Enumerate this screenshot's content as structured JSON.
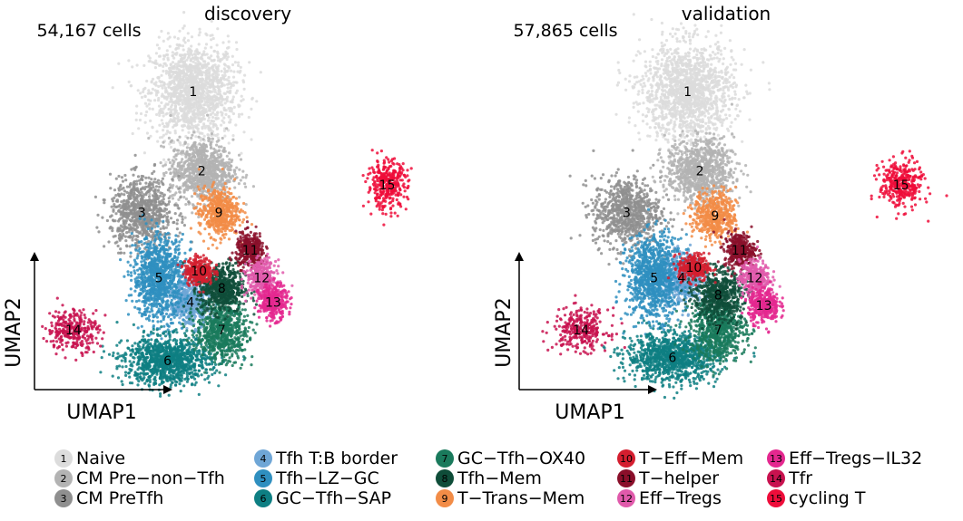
{
  "chart_data": [
    {
      "type": "scatter",
      "title": "discovery",
      "annotation": "54,167 cells",
      "xlabel": "UMAP1",
      "ylabel": "UMAP2",
      "grid": false,
      "clusters": [
        {
          "id": 1,
          "x": 0.0,
          "y": 4.4,
          "count": 1500
        },
        {
          "id": 2,
          "x": 0.3,
          "y": 2.1,
          "count": 900
        },
        {
          "id": 3,
          "x": -1.8,
          "y": 0.9,
          "count": 800
        },
        {
          "id": 4,
          "x": -0.1,
          "y": -1.7,
          "count": 500
        },
        {
          "id": 5,
          "x": -1.2,
          "y": -1.0,
          "count": 1000
        },
        {
          "id": 6,
          "x": -0.9,
          "y": -3.4,
          "count": 1100
        },
        {
          "id": 7,
          "x": 1.0,
          "y": -2.5,
          "count": 700
        },
        {
          "id": 8,
          "x": 1.0,
          "y": -1.3,
          "count": 600
        },
        {
          "id": 9,
          "x": 0.9,
          "y": 0.9,
          "count": 500
        },
        {
          "id": 10,
          "x": 0.2,
          "y": -0.8,
          "count": 300
        },
        {
          "id": 11,
          "x": 2.0,
          "y": -0.2,
          "count": 350
        },
        {
          "id": 12,
          "x": 2.4,
          "y": -1.0,
          "count": 350
        },
        {
          "id": 13,
          "x": 2.8,
          "y": -1.7,
          "count": 350
        },
        {
          "id": 14,
          "x": -4.2,
          "y": -2.5,
          "count": 300
        },
        {
          "id": 15,
          "x": 6.8,
          "y": 1.7,
          "count": 350
        }
      ]
    },
    {
      "type": "scatter",
      "title": "validation",
      "annotation": "57,865 cells",
      "xlabel": "UMAP1",
      "ylabel": "UMAP2",
      "grid": false,
      "clusters": [
        {
          "id": 1,
          "x": 0.0,
          "y": 4.4,
          "count": 1500
        },
        {
          "id": 2,
          "x": 0.4,
          "y": 2.1,
          "count": 900
        },
        {
          "id": 3,
          "x": -2.0,
          "y": 0.9,
          "count": 800
        },
        {
          "id": 4,
          "x": -0.2,
          "y": -1.0,
          "count": 500
        },
        {
          "id": 5,
          "x": -1.1,
          "y": -1.0,
          "count": 1000
        },
        {
          "id": 6,
          "x": -0.5,
          "y": -3.3,
          "count": 1100
        },
        {
          "id": 7,
          "x": 1.0,
          "y": -2.5,
          "count": 700
        },
        {
          "id": 8,
          "x": 1.0,
          "y": -1.5,
          "count": 600
        },
        {
          "id": 9,
          "x": 0.9,
          "y": 0.8,
          "count": 500
        },
        {
          "id": 10,
          "x": 0.2,
          "y": -0.7,
          "count": 300
        },
        {
          "id": 11,
          "x": 1.7,
          "y": -0.2,
          "count": 350
        },
        {
          "id": 12,
          "x": 2.2,
          "y": -1.0,
          "count": 350
        },
        {
          "id": 13,
          "x": 2.5,
          "y": -1.8,
          "count": 350
        },
        {
          "id": 14,
          "x": -3.5,
          "y": -2.5,
          "count": 300
        },
        {
          "id": 15,
          "x": 7.0,
          "y": 1.7,
          "count": 350
        }
      ]
    }
  ],
  "legend": [
    {
      "id": "1",
      "label": "Naive",
      "color": "#dcdcdc"
    },
    {
      "id": "2",
      "label": "CM Pre−non−Tfh",
      "color": "#b3b3b3"
    },
    {
      "id": "3",
      "label": "CM PreTfh",
      "color": "#8f8f8f"
    },
    {
      "id": "4",
      "label": "Tfh T:B border",
      "color": "#6fa6d6"
    },
    {
      "id": "5",
      "label": "Tfh−LZ−GC",
      "color": "#2f8fbf"
    },
    {
      "id": "6",
      "label": "GC−Tfh−SAP",
      "color": "#0e7f83"
    },
    {
      "id": "7",
      "label": "GC−Tfh−OX40",
      "color": "#1a7a5c"
    },
    {
      "id": "8",
      "label": "Tfh−Mem",
      "color": "#0f4d39"
    },
    {
      "id": "9",
      "label": "T−Trans−Mem",
      "color": "#f28c47"
    },
    {
      "id": "10",
      "label": "T−Eff−Mem",
      "color": "#d41e2f"
    },
    {
      "id": "11",
      "label": "T−helper",
      "color": "#8a0f2a"
    },
    {
      "id": "12",
      "label": "Eff−Tregs",
      "color": "#e05aab"
    },
    {
      "id": "13",
      "label": "Eff−Tregs−IL32",
      "color": "#e4288f"
    },
    {
      "id": "14",
      "label": "Tfr",
      "color": "#c8124f"
    },
    {
      "id": "15",
      "label": "cycling T",
      "color": "#ee0d3a"
    }
  ]
}
